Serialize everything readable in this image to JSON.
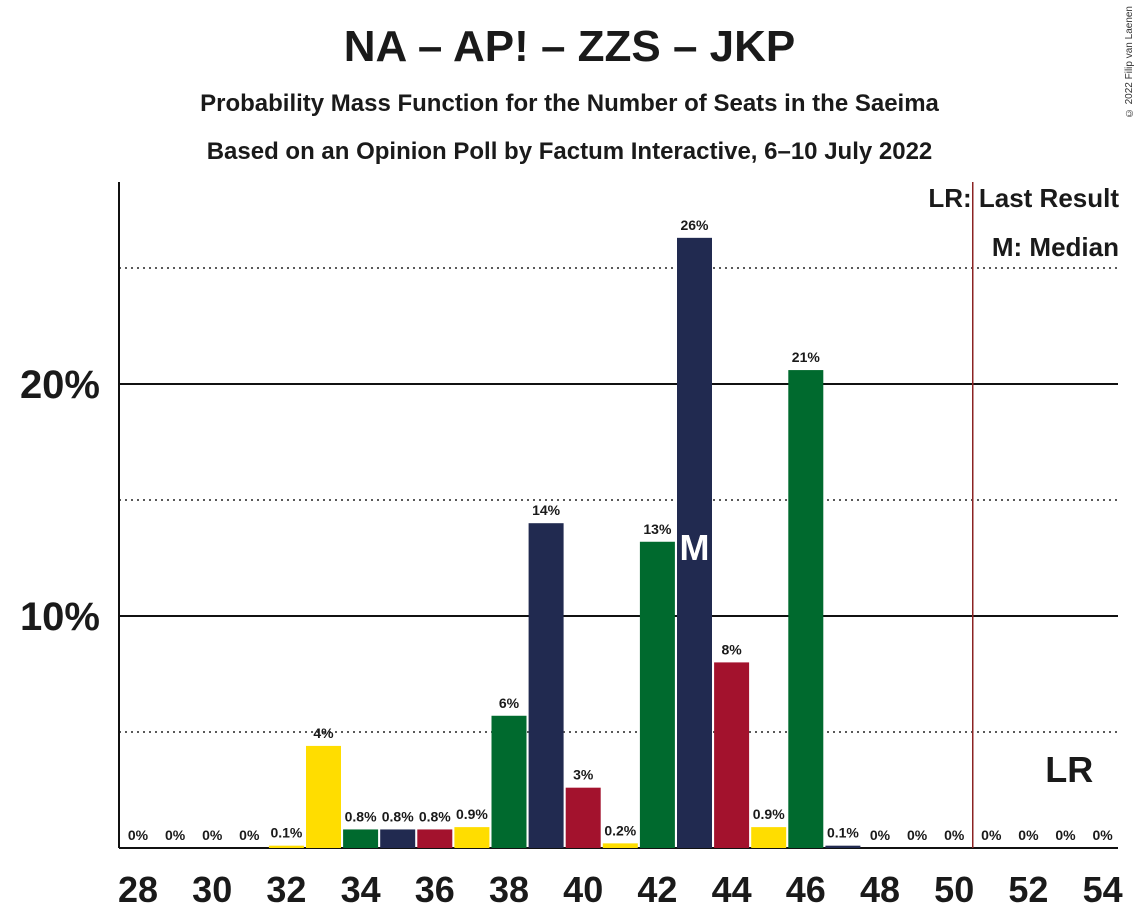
{
  "title": "NA – AP! – ZZS – JKP",
  "subtitle": "Probability Mass Function for the Number of Seats in the Saeima",
  "subtitle2": "Based on an Opinion Poll by Factum Interactive, 6–10 July 2022",
  "copyright": "© 2022 Filip van Laenen",
  "legend": {
    "last_result": "LR: Last Result",
    "median": "M: Median"
  },
  "colors": {
    "yellow": "#FFDD00",
    "green": "#006A2E",
    "navy": "#212A50",
    "red": "#A3122D",
    "lr_line": "#8B2323"
  },
  "chart_data": {
    "type": "bar",
    "xlim": [
      28,
      54
    ],
    "ylim": [
      0,
      0.285
    ],
    "x_ticks": [
      28,
      30,
      32,
      34,
      36,
      38,
      40,
      42,
      44,
      46,
      48,
      50,
      52,
      54
    ],
    "y_ticks_labeled": [
      {
        "value": 0.1,
        "label": "10%"
      },
      {
        "value": 0.2,
        "label": "20%"
      }
    ],
    "y_ticks_dotted": [
      0.05,
      0.15,
      0.25
    ],
    "last_result": 50.5,
    "median": 43,
    "median_marker": "M",
    "lr_marker": "LR",
    "bars": [
      {
        "seats": 28,
        "value": 0.0,
        "label": "0%",
        "color": "yellow"
      },
      {
        "seats": 29,
        "value": 0.0,
        "label": "0%",
        "color": "green"
      },
      {
        "seats": 30,
        "value": 0.0,
        "label": "0%",
        "color": "navy"
      },
      {
        "seats": 31,
        "value": 0.0,
        "label": "0%",
        "color": "red"
      },
      {
        "seats": 32,
        "value": 0.001,
        "label": "0.1%",
        "color": "yellow"
      },
      {
        "seats": 33,
        "value": 0.044,
        "label": "4%",
        "color": "yellow"
      },
      {
        "seats": 34,
        "value": 0.008,
        "label": "0.8%",
        "color": "green"
      },
      {
        "seats": 35,
        "value": 0.008,
        "label": "0.8%",
        "color": "navy"
      },
      {
        "seats": 36,
        "value": 0.008,
        "label": "0.8%",
        "color": "red"
      },
      {
        "seats": 37,
        "value": 0.009,
        "label": "0.9%",
        "color": "yellow"
      },
      {
        "seats": 38,
        "value": 0.057,
        "label": "6%",
        "color": "green"
      },
      {
        "seats": 39,
        "value": 0.14,
        "label": "14%",
        "color": "navy"
      },
      {
        "seats": 40,
        "value": 0.026,
        "label": "3%",
        "color": "red"
      },
      {
        "seats": 41,
        "value": 0.002,
        "label": "0.2%",
        "color": "yellow"
      },
      {
        "seats": 42,
        "value": 0.132,
        "label": "13%",
        "color": "green"
      },
      {
        "seats": 43,
        "value": 0.263,
        "label": "26%",
        "color": "navy"
      },
      {
        "seats": 44,
        "value": 0.08,
        "label": "8%",
        "color": "red"
      },
      {
        "seats": 45,
        "value": 0.009,
        "label": "0.9%",
        "color": "yellow"
      },
      {
        "seats": 46,
        "value": 0.206,
        "label": "21%",
        "color": "green"
      },
      {
        "seats": 47,
        "value": 0.001,
        "label": "0.1%",
        "color": "navy"
      },
      {
        "seats": 48,
        "value": 0.0,
        "label": "0%",
        "color": "red"
      },
      {
        "seats": 49,
        "value": 0.0,
        "label": "0%",
        "color": "yellow"
      },
      {
        "seats": 50,
        "value": 0.0,
        "label": "0%",
        "color": "green"
      },
      {
        "seats": 51,
        "value": 0.0,
        "label": "0%",
        "color": "navy"
      },
      {
        "seats": 52,
        "value": 0.0,
        "label": "0%",
        "color": "red"
      },
      {
        "seats": 53,
        "value": 0.0,
        "label": "0%",
        "color": "yellow"
      },
      {
        "seats": 54,
        "value": 0.0,
        "label": "0%",
        "color": "green"
      }
    ]
  }
}
